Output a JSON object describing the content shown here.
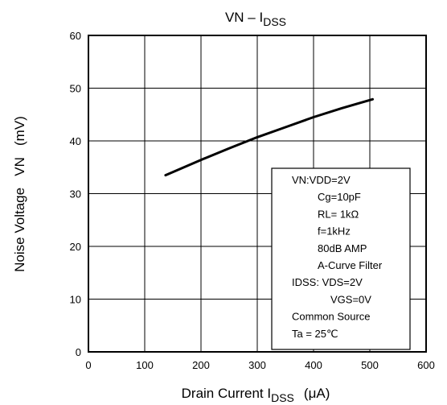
{
  "chart_data": {
    "type": "line",
    "title": {
      "main": "VN – I",
      "sub": "DSS"
    },
    "xlabel": {
      "main": "Drain Current   I",
      "sub": "DSS",
      "unit": "(μA)"
    },
    "ylabel": "Noise Voltage   VN   (mV)",
    "xlim": [
      0,
      600
    ],
    "ylim": [
      0,
      60
    ],
    "x_ticks": [
      "0",
      "100",
      "200",
      "300",
      "400",
      "500",
      "600"
    ],
    "y_ticks": [
      "0",
      "10",
      "20",
      "30",
      "40",
      "50",
      "60"
    ],
    "grid": true,
    "series": [
      {
        "x": [
          137,
          200,
          250,
          300,
          350,
          400,
          450,
          505
        ],
        "y": [
          33.5,
          36.4,
          38.6,
          40.7,
          42.6,
          44.5,
          46.2,
          47.9
        ]
      }
    ],
    "conditions": [
      "VN:VDD=2V",
      "Cg=10pF",
      "RL= 1kΩ",
      "f=1kHz",
      "80dB AMP",
      "A-Curve Filter",
      "IDSS: VDS=2V",
      "VGS=0V",
      "Common Source",
      "Ta = 25℃"
    ],
    "colors": {
      "line": "#000000",
      "grid": "#000000"
    }
  }
}
